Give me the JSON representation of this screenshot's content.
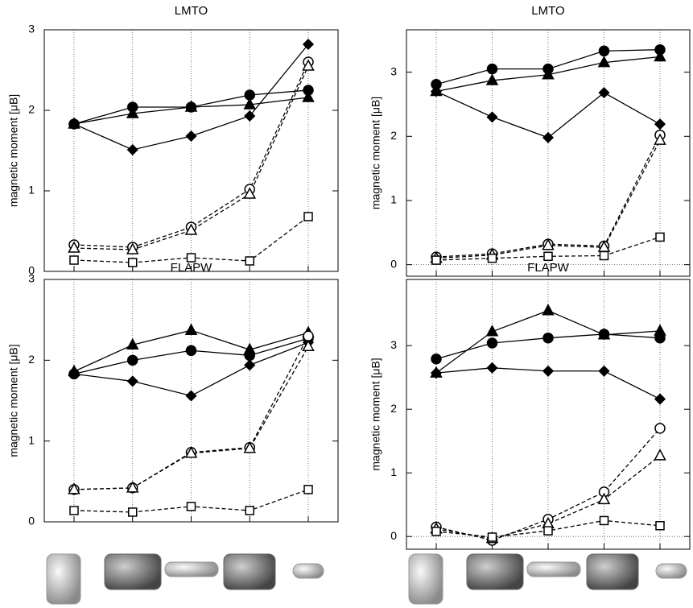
{
  "chart_data": [
    {
      "type": "line",
      "title": "LMTO",
      "y_label": "magnetic moment [μB]",
      "categories": [
        null,
        null,
        null,
        null,
        null
      ],
      "ylim": [
        0,
        3
      ],
      "yticks": [
        0,
        1,
        2,
        3
      ],
      "xgrid": true,
      "zero_line": false,
      "series": [
        {
          "marker": "circle",
          "filled": true,
          "dashed": false,
          "color": "#000000",
          "values": [
            1.83,
            2.04,
            2.04,
            2.19,
            2.25
          ]
        },
        {
          "marker": "triangle",
          "filled": true,
          "dashed": false,
          "color": "#000000",
          "values": [
            1.83,
            1.96,
            2.04,
            2.07,
            2.16
          ]
        },
        {
          "marker": "diamond",
          "filled": true,
          "dashed": false,
          "color": "#000000",
          "values": [
            1.83,
            1.51,
            1.68,
            1.93,
            2.82
          ]
        },
        {
          "marker": "circle",
          "filled": false,
          "dashed": true,
          "color": "#000000",
          "values": [
            0.33,
            0.3,
            0.55,
            1.02,
            2.6
          ]
        },
        {
          "marker": "triangle",
          "filled": false,
          "dashed": true,
          "color": "#000000",
          "values": [
            0.29,
            0.27,
            0.51,
            0.96,
            2.55
          ]
        },
        {
          "marker": "square",
          "filled": false,
          "dashed": true,
          "color": "#000000",
          "values": [
            0.14,
            0.11,
            0.17,
            0.13,
            0.68
          ]
        }
      ]
    },
    {
      "type": "line",
      "title": "LMTO",
      "y_label": "magnetic moment [μB]",
      "categories": [
        null,
        null,
        null,
        null,
        null
      ],
      "ylim": [
        -0.18,
        3.66
      ],
      "yticks": [
        0,
        1,
        2,
        3
      ],
      "xgrid": true,
      "zero_line": true,
      "series": [
        {
          "marker": "circle",
          "filled": true,
          "dashed": false,
          "color": "#000000",
          "values": [
            2.81,
            3.05,
            3.05,
            3.33,
            3.35
          ]
        },
        {
          "marker": "triangle",
          "filled": true,
          "dashed": false,
          "color": "#000000",
          "values": [
            2.7,
            2.87,
            2.96,
            3.15,
            3.24
          ]
        },
        {
          "marker": "diamond",
          "filled": true,
          "dashed": false,
          "color": "#000000",
          "values": [
            2.7,
            2.3,
            1.98,
            2.68,
            2.19
          ]
        },
        {
          "marker": "circle",
          "filled": false,
          "dashed": true,
          "color": "#000000",
          "values": [
            0.12,
            0.17,
            0.32,
            0.29,
            2.02
          ]
        },
        {
          "marker": "triangle",
          "filled": false,
          "dashed": true,
          "color": "#000000",
          "values": [
            0.1,
            0.15,
            0.3,
            0.27,
            1.94
          ]
        },
        {
          "marker": "square",
          "filled": false,
          "dashed": true,
          "color": "#000000",
          "values": [
            0.07,
            0.1,
            0.13,
            0.14,
            0.43
          ]
        }
      ]
    },
    {
      "type": "line",
      "title": "FLAPW",
      "y_label": "magnetic moment [μB]",
      "categories": [
        null,
        null,
        null,
        null,
        null
      ],
      "ylim": [
        0,
        3
      ],
      "yticks": [
        0,
        1,
        2,
        3
      ],
      "xgrid": true,
      "zero_line": false,
      "series": [
        {
          "marker": "circle",
          "filled": true,
          "dashed": false,
          "color": "#000000",
          "values": [
            1.83,
            2.0,
            2.12,
            2.06,
            2.27
          ]
        },
        {
          "marker": "triangle",
          "filled": true,
          "dashed": false,
          "color": "#000000",
          "values": [
            1.86,
            2.19,
            2.37,
            2.13,
            2.34
          ]
        },
        {
          "marker": "diamond",
          "filled": true,
          "dashed": false,
          "color": "#000000",
          "values": [
            1.83,
            1.74,
            1.56,
            1.94,
            2.22
          ]
        },
        {
          "marker": "circle",
          "filled": false,
          "dashed": true,
          "color": "#000000",
          "values": [
            0.4,
            0.42,
            0.86,
            0.92,
            2.3
          ]
        },
        {
          "marker": "triangle",
          "filled": false,
          "dashed": true,
          "color": "#000000",
          "values": [
            0.4,
            0.42,
            0.85,
            0.91,
            2.17
          ]
        },
        {
          "marker": "square",
          "filled": false,
          "dashed": true,
          "color": "#000000",
          "values": [
            0.14,
            0.12,
            0.19,
            0.14,
            0.4
          ]
        }
      ]
    },
    {
      "type": "line",
      "title": "FLAPW",
      "y_label": "magnetic moment [μB]",
      "categories": [
        null,
        null,
        null,
        null,
        null
      ],
      "ylim": [
        -0.2,
        4.04
      ],
      "yticks": [
        0,
        1,
        2,
        3
      ],
      "xgrid": true,
      "zero_line": true,
      "series": [
        {
          "marker": "circle",
          "filled": true,
          "dashed": false,
          "color": "#000000",
          "values": [
            2.79,
            3.04,
            3.12,
            3.18,
            3.12
          ]
        },
        {
          "marker": "triangle",
          "filled": true,
          "dashed": false,
          "color": "#000000",
          "values": [
            2.57,
            3.22,
            3.55,
            3.17,
            3.23
          ]
        },
        {
          "marker": "diamond",
          "filled": true,
          "dashed": false,
          "color": "#000000",
          "values": [
            2.57,
            2.65,
            2.6,
            2.6,
            2.16
          ]
        },
        {
          "marker": "circle",
          "filled": false,
          "dashed": true,
          "color": "#000000",
          "values": [
            0.15,
            -0.06,
            0.27,
            0.7,
            1.7
          ]
        },
        {
          "marker": "triangle",
          "filled": false,
          "dashed": true,
          "color": "#000000",
          "values": [
            0.12,
            -0.03,
            0.2,
            0.58,
            1.27
          ]
        },
        {
          "marker": "square",
          "filled": false,
          "dashed": true,
          "color": "#000000",
          "values": [
            0.08,
            -0.01,
            0.09,
            0.25,
            0.17
          ]
        }
      ]
    }
  ]
}
